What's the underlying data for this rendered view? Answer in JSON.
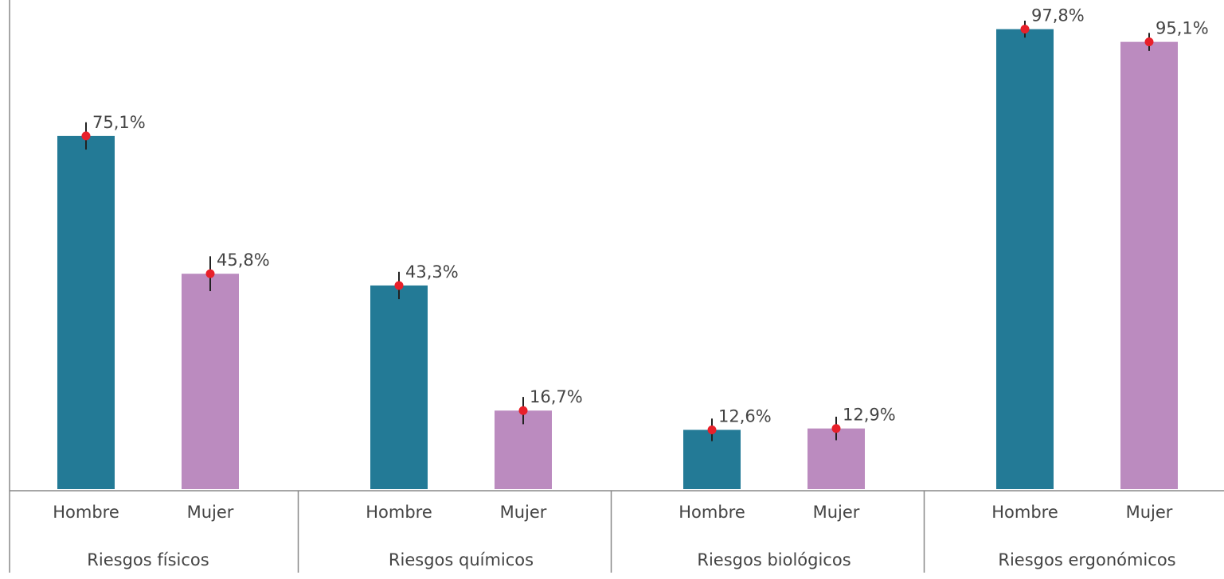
{
  "chart_data": {
    "type": "bar",
    "categories": [
      "Riesgos físicos",
      "Riesgos químicos",
      "Riesgos biológicos",
      "Riesgos ergonómicos"
    ],
    "series": [
      {
        "name": "Hombre",
        "color": "#237a96",
        "values": [
          75.1,
          43.3,
          12.6,
          97.8
        ],
        "value_labels": [
          "75,1%",
          "43,3%",
          "12,6%",
          "97,8%"
        ],
        "errors": [
          2.9,
          2.9,
          2.4,
          1.8
        ]
      },
      {
        "name": "Mujer",
        "color": "#bb8bbf",
        "values": [
          45.8,
          16.7,
          12.9,
          95.1
        ],
        "value_labels": [
          "45,8%",
          "16,7%",
          "12,9%",
          "95,1%"
        ],
        "errors": [
          3.7,
          2.9,
          2.5,
          1.9
        ]
      }
    ],
    "ylim": [
      0,
      104
    ],
    "error_color": "#222222",
    "point_color": "#e8202a"
  }
}
